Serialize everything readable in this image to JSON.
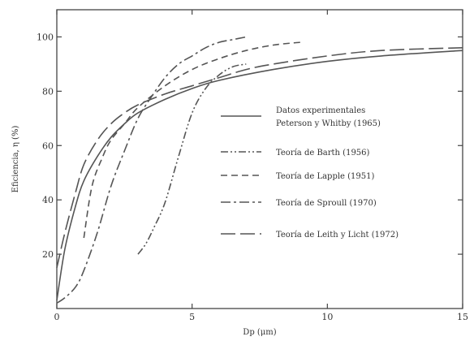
{
  "chart_data": {
    "type": "line",
    "title": "",
    "xlabel": "Dp (μm)",
    "ylabel": "Eficiencia, η (%)",
    "xlim": [
      0,
      15
    ],
    "ylim": [
      0,
      110
    ],
    "xticks": [
      "0",
      "5",
      "10",
      "15"
    ],
    "xtick_values": [
      0,
      5,
      10,
      15
    ],
    "yticks": [
      "20",
      "40",
      "60",
      "80",
      "100"
    ],
    "ytick_values": [
      20,
      40,
      60,
      80,
      100
    ],
    "grid": false,
    "legend_position": "right",
    "series": [
      {
        "name": "Datos experimentales\nPeterson y Whitby (1965)",
        "style": "solid",
        "x": [
          0,
          0.3,
          0.7,
          1,
          1.5,
          2,
          2.5,
          3,
          4,
          5,
          6,
          8,
          10,
          12,
          15
        ],
        "y": [
          3,
          22,
          38,
          47,
          56,
          63,
          68,
          72,
          77,
          81,
          84,
          88,
          91,
          93,
          95
        ]
      },
      {
        "name": "Teoría de Barth (1956)",
        "style": "dashdotdot",
        "x": [
          3,
          3.3,
          3.6,
          4,
          4.5,
          5,
          5.5,
          6,
          6.5,
          7
        ],
        "y": [
          20,
          24,
          30,
          39,
          56,
          72,
          81,
          86,
          89,
          90
        ]
      },
      {
        "name": "Teoría de Lapple (1951)",
        "style": "dashed",
        "x": [
          1,
          1.3,
          1.7,
          2,
          2.5,
          3,
          4,
          5,
          6,
          7,
          8,
          9
        ],
        "y": [
          26,
          45,
          56,
          62,
          68,
          74,
          82,
          88,
          92,
          95,
          97,
          98
        ]
      },
      {
        "name": "Teoría de Sproull (1970)",
        "style": "dashdot",
        "x": [
          0,
          0.3,
          0.7,
          1,
          1.5,
          2,
          2.5,
          3,
          3.5,
          4,
          4.5,
          5,
          5.5,
          6,
          6.5,
          7
        ],
        "y": [
          2,
          4,
          8,
          14,
          28,
          45,
          58,
          70,
          78,
          85,
          90,
          93,
          96,
          98,
          99,
          100
        ]
      },
      {
        "name": "Teoría de Leith y Licht (1972)",
        "style": "longdash",
        "x": [
          0,
          0.3,
          0.7,
          1,
          1.5,
          2,
          2.5,
          3,
          4,
          5,
          6,
          7,
          8,
          10,
          12,
          15
        ],
        "y": [
          15,
          28,
          43,
          53,
          62,
          68,
          72,
          75,
          79,
          82,
          85,
          88,
          90,
          93,
          95,
          96
        ]
      }
    ]
  }
}
